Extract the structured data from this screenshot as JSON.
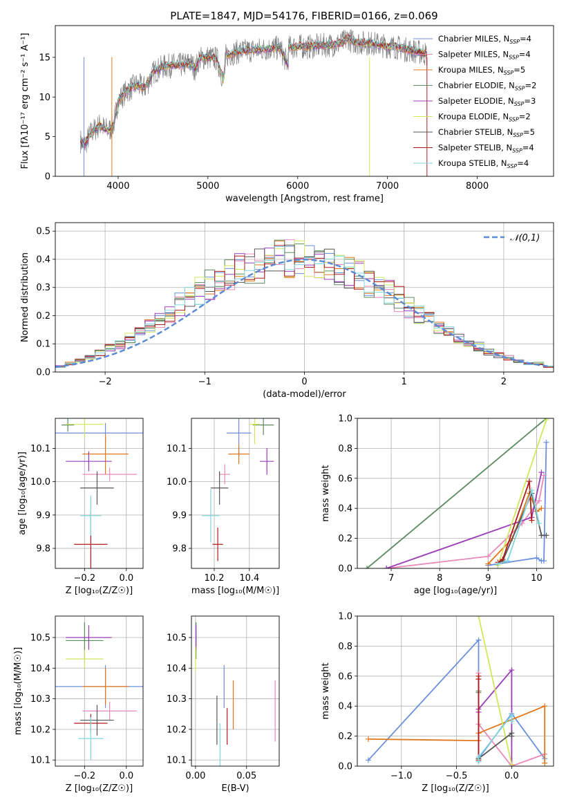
{
  "colors": [
    "#6a8fdc",
    "#e889b8",
    "#e0771c",
    "#5b8a5e",
    "#9b3bb8",
    "#cfe85b",
    "#555555",
    "#b01818",
    "#7fd6dc"
  ],
  "chart_data": [
    {
      "id": "spectrum",
      "type": "line",
      "title": "PLATE=1847, MJD=54176, FIBERID=0166, z=0.069",
      "xlabel": "wavelength [Angstrom, rest frame]",
      "ylabel": "Flux [fλ10⁻¹⁷ erg cm⁻² s⁻¹ A⁻¹]",
      "xlim": [
        3300,
        8850
      ],
      "ylim": [
        0,
        19
      ],
      "xticks": [
        4000,
        5000,
        6000,
        7000,
        8000
      ],
      "yticks": [
        0,
        5,
        10,
        15
      ],
      "grid": false,
      "legend_position": "top-right",
      "legend": [
        "Chabrier MILES, N_SSP=4",
        "Salpeter MILES, N_SSP=4",
        "Kroupa MILES, N_SSP=5",
        "Chabrier ELODIE, N_SSP=2",
        "Salpeter ELODIE, N_SSP=3",
        "Kroupa ELODIE, N_SSP=2",
        "Chabrier STELIB, N_SSP=5",
        "Salpeter STELIB, N_SSP=4",
        "Kroupa STELIB, N_SSP=4"
      ],
      "series": [
        {
          "x": [
            3580,
            3620,
            3700,
            3800,
            3850,
            3900,
            3950,
            4000,
            4100,
            4200,
            4300,
            4400,
            4500,
            4600,
            4700,
            4800,
            4862,
            4900,
            5000,
            5100,
            5175,
            5200,
            5300,
            5400,
            5500,
            5600,
            5700,
            5800,
            5893,
            5900,
            6000,
            6100,
            6200,
            6300,
            6400,
            6500,
            6563,
            6600,
            6700,
            6800,
            6900,
            7000,
            7100,
            7200,
            7300,
            7400,
            7440
          ],
          "y": [
            4.5,
            3.8,
            5.5,
            6.5,
            6.0,
            5.8,
            6.5,
            9.5,
            10.8,
            11.5,
            11.2,
            13.2,
            13.8,
            14.0,
            14.0,
            14.3,
            13.5,
            14.8,
            15.0,
            14.8,
            12.0,
            15.2,
            15.6,
            15.8,
            15.9,
            16.0,
            16.1,
            16.2,
            14.0,
            16.2,
            16.4,
            16.3,
            16.4,
            16.5,
            16.6,
            16.8,
            17.5,
            17.0,
            16.8,
            16.8,
            16.6,
            16.4,
            16.3,
            16.0,
            15.8,
            15.5,
            15.4
          ]
        }
      ]
    },
    {
      "id": "residuals",
      "type": "line",
      "xlabel": "(data-model)/error",
      "ylabel": "Normed distribution",
      "xlim": [
        -2.5,
        2.5
      ],
      "ylim": [
        0,
        0.53
      ],
      "xticks": [
        -2,
        -1,
        0,
        1,
        2
      ],
      "yticks": [
        0.0,
        0.1,
        0.2,
        0.3,
        0.4,
        0.5
      ],
      "grid": true,
      "legend_position": "top-right",
      "legend": [
        "𝒩(0,1)"
      ],
      "bin_width": 0.1,
      "hist_center": [
        0.02,
        0.03,
        0.04,
        0.05,
        0.07,
        0.09,
        0.1,
        0.12,
        0.14,
        0.16,
        0.19,
        0.21,
        0.24,
        0.27,
        0.29,
        0.31,
        0.33,
        0.35,
        0.36,
        0.37,
        0.38,
        0.39,
        0.4,
        0.4,
        0.4,
        0.4,
        0.39,
        0.38,
        0.37,
        0.36,
        0.34,
        0.32,
        0.3,
        0.28,
        0.26,
        0.23,
        0.2,
        0.18,
        0.16,
        0.14,
        0.12,
        0.1,
        0.09,
        0.07,
        0.06,
        0.05,
        0.04,
        0.03,
        0.03,
        0.02
      ]
    },
    {
      "id": "age-vs-Z",
      "type": "scatter",
      "xlabel": "Z [log₁₀(Z/Z☉)]",
      "ylabel": "age  [log₁₀(age/yr)]",
      "xlim": [
        -0.34,
        0.08
      ],
      "ylim": [
        9.74,
        10.19
      ],
      "xticks": [
        -0.2,
        0.0
      ],
      "yticks": [
        9.8,
        9.9,
        10.0,
        10.1
      ],
      "grid": true,
      "errorbars": [
        {
          "x": -0.1,
          "y": 10.146,
          "xerr": 0.25,
          "yerr": 0.03
        },
        {
          "x": -0.08,
          "y": 10.022,
          "xerr": 0.13,
          "yerr": 0.02
        },
        {
          "x": -0.1,
          "y": 10.083,
          "xerr": 0.11,
          "yerr": 0.06
        },
        {
          "x": -0.28,
          "y": 10.17,
          "xerr": 0.03,
          "yerr": 0.02
        },
        {
          "x": -0.18,
          "y": 10.061,
          "xerr": 0.11,
          "yerr": 0.03
        },
        {
          "x": -0.2,
          "y": 10.172,
          "xerr": 0.09,
          "yerr": 0.04
        },
        {
          "x": -0.14,
          "y": 9.981,
          "xerr": 0.08,
          "yerr": 0.05
        },
        {
          "x": -0.17,
          "y": 9.812,
          "xerr": 0.08,
          "yerr": 0.1
        },
        {
          "x": -0.17,
          "y": 9.898,
          "xerr": 0.05,
          "yerr": 0.06
        }
      ]
    },
    {
      "id": "age-vs-mass",
      "type": "scatter",
      "xlabel": "mass [log₁₀(M/M☉)]",
      "ylabel": "",
      "xlim": [
        10.07,
        10.57
      ],
      "ylim": [
        9.74,
        10.19
      ],
      "xticks": [
        10.2,
        10.4
      ],
      "yticks": [
        9.8,
        9.9,
        10.0,
        10.1
      ],
      "grid": true,
      "errorbars": [
        {
          "x": 10.34,
          "y": 10.146,
          "xerr": 0.07,
          "yerr": 0.07
        },
        {
          "x": 10.26,
          "y": 10.022,
          "xerr": 0.03,
          "yerr": 0.03
        },
        {
          "x": 10.34,
          "y": 10.083,
          "xerr": 0.06,
          "yerr": 0.03
        },
        {
          "x": 10.48,
          "y": 10.17,
          "xerr": 0.06,
          "yerr": 0.03
        },
        {
          "x": 10.5,
          "y": 10.061,
          "xerr": 0.04,
          "yerr": 0.04
        },
        {
          "x": 10.43,
          "y": 10.172,
          "xerr": 0.03,
          "yerr": 0.06
        },
        {
          "x": 10.23,
          "y": 9.981,
          "xerr": 0.05,
          "yerr": 0.05
        },
        {
          "x": 10.22,
          "y": 9.812,
          "xerr": 0.03,
          "yerr": 0.05
        },
        {
          "x": 10.18,
          "y": 9.898,
          "xerr": 0.05,
          "yerr": 0.08
        }
      ]
    },
    {
      "id": "massweight-vs-age",
      "type": "line",
      "xlabel": "age  [log₁₀(age/yr)]",
      "ylabel": "mass weight",
      "xlim": [
        6.3,
        10.35
      ],
      "ylim": [
        0,
        1.0
      ],
      "xticks": [
        7,
        8,
        9,
        10
      ],
      "yticks": [
        0.0,
        0.2,
        0.4,
        0.6,
        0.8,
        1.0
      ],
      "grid": true,
      "series": [
        {
          "x": [
            9.0,
            10.0,
            10.1,
            10.15,
            10.2
          ],
          "y": [
            0.02,
            0.07,
            0.05,
            0.05,
            0.84
          ]
        },
        {
          "x": [
            6.9,
            9.0,
            9.7,
            10.05,
            10.15
          ],
          "y": [
            0.0,
            0.08,
            0.3,
            0.45,
            0.62
          ]
        },
        {
          "x": [
            9.0,
            9.5,
            9.85,
            10.0,
            10.1
          ],
          "y": [
            0.03,
            0.2,
            0.5,
            0.38,
            0.4
          ]
        },
        {
          "x": [
            6.5,
            10.2
          ],
          "y": [
            0.0,
            1.0
          ]
        },
        {
          "x": [
            6.9,
            9.9,
            10.1
          ],
          "y": [
            0.0,
            0.34,
            0.64
          ]
        },
        {
          "x": [
            9.2,
            10.2
          ],
          "y": [
            0.02,
            0.99
          ]
        },
        {
          "x": [
            9.2,
            9.3,
            9.9,
            10.1,
            10.2
          ],
          "y": [
            0.03,
            0.05,
            0.5,
            0.22,
            0.22
          ]
        },
        {
          "x": [
            9.2,
            9.3,
            9.85,
            9.9
          ],
          "y": [
            0.04,
            0.06,
            0.58,
            0.32
          ]
        },
        {
          "x": [
            9.2,
            9.4,
            9.9,
            10.05
          ],
          "y": [
            0.03,
            0.05,
            0.52,
            0.3
          ]
        }
      ]
    },
    {
      "id": "mass-vs-Z",
      "type": "scatter",
      "xlabel": "Z [log₁₀(Z/Z☉)]",
      "ylabel": "mass [log₁₀(M/M☉)]",
      "xlim": [
        -0.34,
        0.08
      ],
      "ylim": [
        10.08,
        10.57
      ],
      "xticks": [
        -0.2,
        0.0
      ],
      "yticks": [
        10.1,
        10.2,
        10.3,
        10.4,
        10.5
      ],
      "grid": true,
      "errorbars": [
        {
          "x": -0.1,
          "y": 10.34,
          "xerr": 0.25,
          "yerr": 0.07
        },
        {
          "x": -0.08,
          "y": 10.26,
          "xerr": 0.13,
          "yerr": 0.03
        },
        {
          "x": -0.1,
          "y": 10.34,
          "xerr": 0.11,
          "yerr": 0.06
        },
        {
          "x": -0.2,
          "y": 10.49,
          "xerr": 0.09,
          "yerr": 0.06
        },
        {
          "x": -0.18,
          "y": 10.5,
          "xerr": 0.11,
          "yerr": 0.04
        },
        {
          "x": -0.2,
          "y": 10.43,
          "xerr": 0.09,
          "yerr": 0.03
        },
        {
          "x": -0.14,
          "y": 10.23,
          "xerr": 0.08,
          "yerr": 0.05
        },
        {
          "x": -0.17,
          "y": 10.22,
          "xerr": 0.08,
          "yerr": 0.03
        },
        {
          "x": -0.17,
          "y": 10.17,
          "xerr": 0.06,
          "yerr": 0.07
        }
      ]
    },
    {
      "id": "mass-vs-EBV",
      "type": "scatter",
      "xlabel": "E(B-V)",
      "ylabel": "",
      "xlim": [
        -0.004,
        0.082
      ],
      "ylim": [
        10.08,
        10.57
      ],
      "xticks": [
        0.0,
        0.05
      ],
      "yticks": [
        10.1,
        10.2,
        10.3,
        10.4,
        10.5
      ],
      "grid": true,
      "errorbars": [
        {
          "x": 0.028,
          "y": 10.34,
          "xerr": 0,
          "yerr": 0.07
        },
        {
          "x": 0.078,
          "y": 10.26,
          "xerr": 0,
          "yerr": 0.1
        },
        {
          "x": 0.037,
          "y": 10.28,
          "xerr": 0,
          "yerr": 0.08
        },
        {
          "x": 0.0005,
          "y": 10.49,
          "xerr": 0,
          "yerr": 0.06
        },
        {
          "x": 0.0005,
          "y": 10.5,
          "xerr": 0,
          "yerr": 0.04
        },
        {
          "x": 0.0,
          "y": 10.43,
          "xerr": 0,
          "yerr": 0.04
        },
        {
          "x": 0.021,
          "y": 10.23,
          "xerr": 0,
          "yerr": 0.08
        },
        {
          "x": 0.031,
          "y": 10.21,
          "xerr": 0,
          "yerr": 0.06
        },
        {
          "x": 0.024,
          "y": 10.15,
          "xerr": 0,
          "yerr": 0.07
        }
      ]
    },
    {
      "id": "massweight-vs-Z",
      "type": "line",
      "xlabel": "Z [log₁₀(Z/Z☉)]",
      "ylabel": "mass weight",
      "xlim": [
        -1.4,
        0.38
      ],
      "ylim": [
        0,
        1.0
      ],
      "xticks": [
        -1.0,
        -0.5,
        0.0
      ],
      "yticks": [
        0.0,
        0.2,
        0.4,
        0.6,
        0.8,
        1.0
      ],
      "grid": true,
      "series": [
        {
          "x": [
            -1.3,
            -0.3,
            -0.3,
            0.0,
            0.3
          ],
          "y": [
            0.04,
            0.84,
            0.05,
            0.35,
            0.05
          ]
        },
        {
          "x": [
            -0.3,
            -0.3,
            0.0,
            0.3
          ],
          "y": [
            0.62,
            0.28,
            0.0,
            0.08
          ]
        },
        {
          "x": [
            -1.3,
            -0.3,
            -0.3,
            0.3,
            0.3
          ],
          "y": [
            0.18,
            0.17,
            0.22,
            0.4,
            0.02
          ]
        },
        {
          "x": [
            -0.3,
            -0.3
          ],
          "y": [
            0.5,
            0.49
          ]
        },
        {
          "x": [
            -0.3,
            -0.3,
            0.0,
            0.0
          ],
          "y": [
            0.36,
            0.38,
            0.64,
            0.01
          ]
        },
        {
          "x": [
            -0.3,
            0.0
          ],
          "y": [
            1.0,
            0.01
          ]
        },
        {
          "x": [
            -0.3,
            -0.3,
            0.0,
            0.0
          ],
          "y": [
            0.03,
            0.05,
            0.22,
            0.2
          ]
        },
        {
          "x": [
            -0.3,
            -0.3,
            -0.3
          ],
          "y": [
            0.58,
            0.6,
            0.04
          ]
        },
        {
          "x": [
            -0.3,
            -0.3,
            0.0,
            0.0
          ],
          "y": [
            0.03,
            0.06,
            0.34,
            0.3
          ]
        }
      ]
    }
  ]
}
